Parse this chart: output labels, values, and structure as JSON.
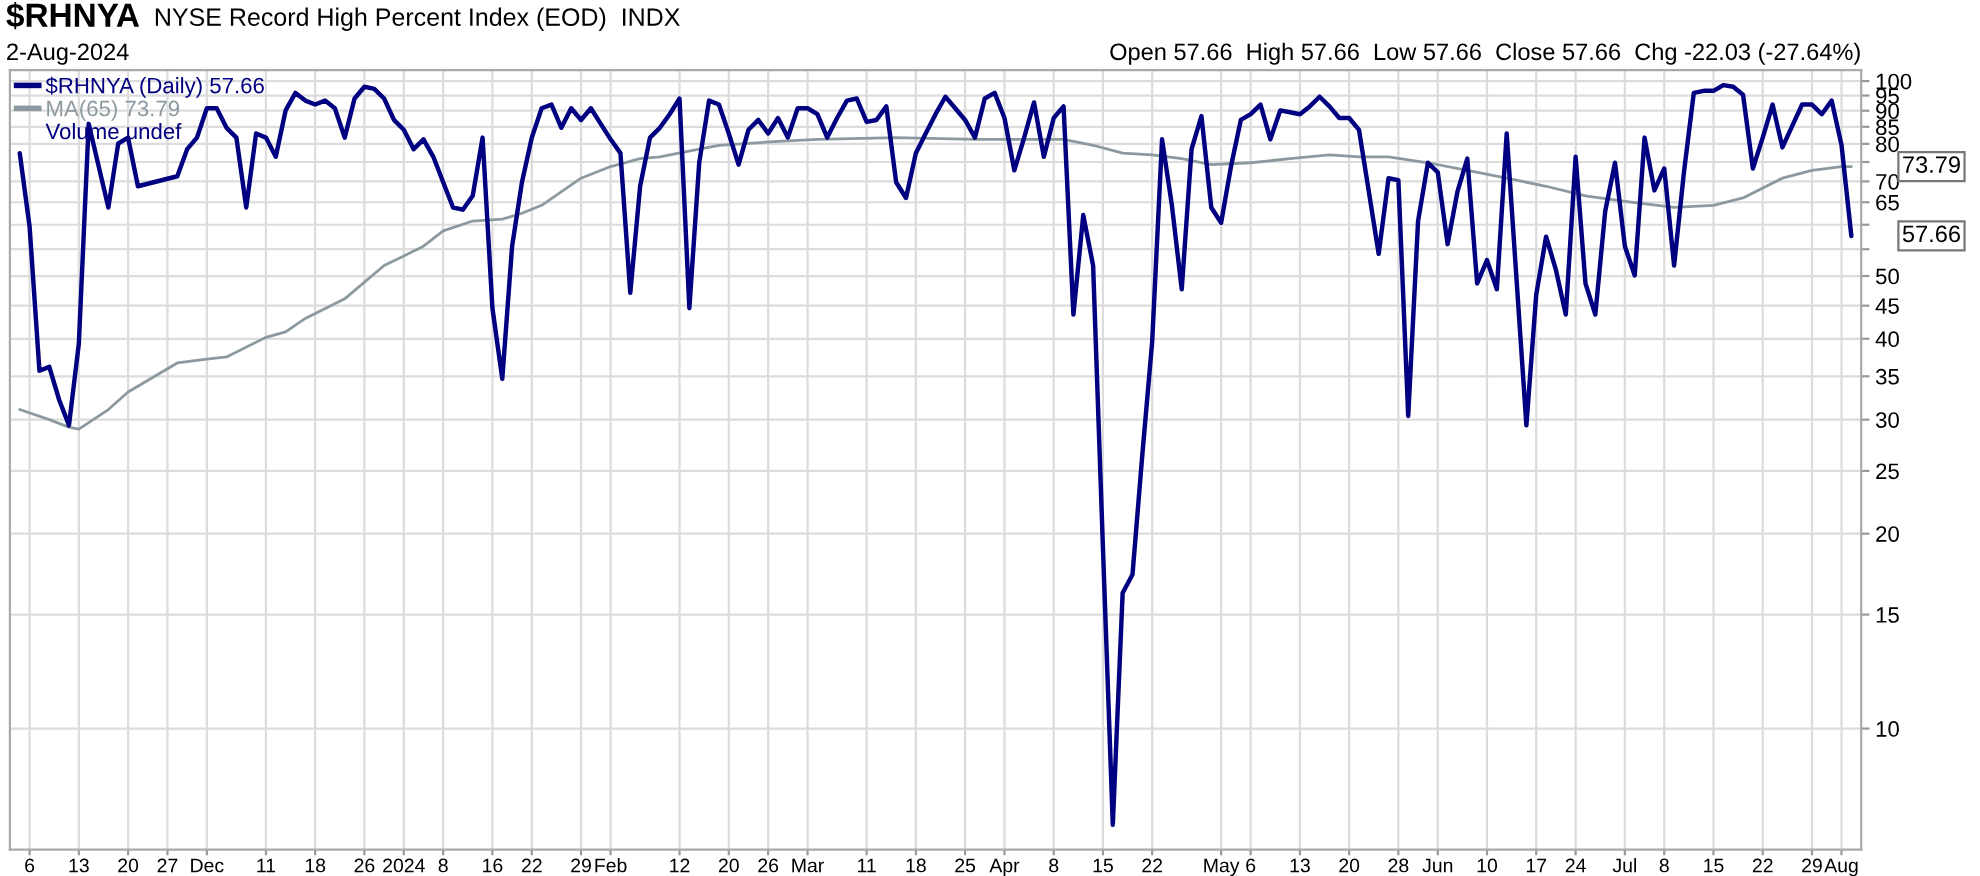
{
  "chart_data": {
    "type": "line",
    "title": "$RHNYA",
    "subtitle": "NYSE Record High Percent Index (EOD)  INDX",
    "annotations": [
      "2-Aug-2024",
      "Open 57.66  High 57.66  Low 57.66  Close 57.66  Chg -22.03 (-27.64%)",
      "Volume undef",
      "57.66",
      "73.79"
    ],
    "log": true,
    "grid": true,
    "legend": "top left",
    "ylim": [
      6.5,
      104
    ],
    "yticks": [
      10,
      15,
      20,
      25,
      30,
      35,
      40,
      45,
      50,
      {
        "value": 55,
        "label": null
      },
      {
        "value": 60,
        "label": null
      },
      65,
      70,
      {
        "value": 75,
        "label": null
      },
      80,
      85,
      90,
      95,
      100
    ],
    "categories": [
      null,
      "6",
      null,
      null,
      null,
      null,
      "13",
      null,
      null,
      null,
      null,
      "20",
      null,
      null,
      null,
      "27",
      null,
      null,
      null,
      "Dec",
      null,
      null,
      null,
      null,
      null,
      "11",
      null,
      null,
      null,
      null,
      "18",
      null,
      null,
      null,
      null,
      "26",
      null,
      null,
      null,
      "2024",
      null,
      null,
      null,
      "8",
      null,
      null,
      null,
      null,
      "16",
      null,
      null,
      null,
      "22",
      null,
      null,
      null,
      null,
      "29",
      null,
      null,
      "Feb",
      null,
      null,
      null,
      null,
      null,
      null,
      "12",
      null,
      null,
      null,
      null,
      "20",
      null,
      null,
      null,
      "26",
      null,
      null,
      null,
      "Mar",
      null,
      null,
      null,
      null,
      null,
      "11",
      null,
      null,
      null,
      null,
      "18",
      null,
      null,
      null,
      null,
      "25",
      null,
      null,
      null,
      "Apr",
      null,
      null,
      null,
      null,
      "8",
      null,
      null,
      null,
      null,
      "15",
      null,
      null,
      null,
      null,
      "22",
      null,
      null,
      null,
      null,
      null,
      null,
      "May",
      null,
      null,
      "6",
      null,
      null,
      null,
      null,
      "13",
      null,
      null,
      null,
      null,
      "20",
      null,
      null,
      null,
      null,
      "28",
      null,
      null,
      null,
      "Jun",
      null,
      null,
      null,
      null,
      "10",
      null,
      null,
      null,
      null,
      "17",
      null,
      null,
      null,
      "24",
      null,
      null,
      null,
      null,
      "Jul",
      null,
      null,
      null,
      "8",
      null,
      null,
      null,
      null,
      "15",
      null,
      null,
      null,
      null,
      "22",
      null,
      null,
      null,
      null,
      "29",
      null,
      null,
      "Aug",
      null
    ],
    "series": [
      {
        "name": "$RHNYA (Daily) 57.66",
        "color": "#000080",
        "values": [
          77.4,
          59.6,
          35.7,
          36.2,
          32.2,
          29.4,
          39.3,
          85.9,
          null,
          63.8,
          80.1,
          81.8,
          68.8,
          null,
          null,
          null,
          71.3,
          78.5,
          81.8,
          90.8,
          90.8,
          84.7,
          81.8,
          63.8,
          83,
          81.8,
          76.4,
          90.1,
          95.9,
          93.3,
          92,
          93.3,
          90.8,
          81.8,
          94,
          98,
          97.3,
          94,
          87.1,
          84.1,
          78.5,
          81.3,
          76.4,
          69.8,
          63.8,
          63.3,
          66.5,
          81.8,
          44.6,
          34.7,
          55.6,
          69.8,
          81.8,
          90.8,
          92,
          84.7,
          90.8,
          87.1,
          90.8,
          85.9,
          81.3,
          77.4,
          47.1,
          68.8,
          81.8,
          84.7,
          88.9,
          94,
          44.6,
          74.8,
          93.3,
          92,
          83,
          74.3,
          84.1,
          87.1,
          83,
          87.7,
          81.8,
          90.8,
          90.8,
          88.9,
          81.8,
          87.7,
          93.3,
          94,
          86.5,
          87.1,
          91.4,
          69.8,
          66,
          77.4,
          83,
          88.9,
          94.6,
          90.8,
          87.1,
          81.8,
          94,
          95.9,
          87.7,
          72.8,
          81.8,
          92.7,
          76.4,
          87.7,
          91.4,
          43.6,
          62.1,
          51.9,
          19,
          7.1,
          16.2,
          17.3,
          26.5,
          39.6,
          81.3,
          64.3,
          47.7,
          78.5,
          88.3,
          63.8,
          60.4,
          73.8,
          87.1,
          88.9,
          92,
          81.3,
          90.1,
          89.5,
          88.9,
          91.4,
          94.6,
          91.4,
          87.7,
          87.7,
          84.1,
          67.5,
          54.1,
          70.8,
          70.3,
          30.4,
          60.8,
          74.8,
          72.3,
          56,
          67.5,
          75.9,
          48.7,
          52.9,
          47.7,
          83,
          49.4,
          29.4,
          46.8,
          57.5,
          51.1,
          43.6,
          76.4,
          48.7,
          43.6,
          62.9,
          74.8,
          55.6,
          50.1,
          81.8,
          67.8,
          73.3,
          51.9,
          72.3,
          95.9,
          96.6,
          96.6,
          98.6,
          98,
          95.3,
          73.3,
          81.8,
          92,
          79,
          85.3,
          92,
          92,
          88.9,
          93.3,
          79.7,
          57.66
        ]
      },
      {
        "name": "MA(65) 73.79",
        "color": "#8c9aa0",
        "values": [
          31.1,
          null,
          null,
          30,
          null,
          29.2,
          29,
          null,
          null,
          31.1,
          null,
          33.1,
          null,
          null,
          null,
          null,
          36.7,
          null,
          null,
          37.2,
          null,
          37.5,
          null,
          null,
          null,
          40.2,
          null,
          41,
          null,
          43,
          null,
          null,
          null,
          46.1,
          null,
          null,
          null,
          51.9,
          null,
          53.7,
          null,
          55.6,
          null,
          58.7,
          null,
          null,
          60.8,
          null,
          null,
          61.2,
          null,
          62.5,
          null,
          64.3,
          null,
          null,
          null,
          70.8,
          null,
          null,
          73.8,
          null,
          null,
          75.9,
          null,
          76.4,
          null,
          null,
          null,
          78.5,
          null,
          79.6,
          null,
          null,
          null,
          null,
          null,
          80.7,
          null,
          null,
          null,
          81.3,
          null,
          null,
          null,
          null,
          null,
          null,
          null,
          81.8,
          null,
          null,
          null,
          null,
          null,
          null,
          null,
          81.3,
          null,
          null,
          null,
          null,
          null,
          null,
          null,
          null,
          81.3,
          null,
          null,
          79.6,
          null,
          null,
          77.4,
          null,
          null,
          76.9,
          null,
          null,
          75.9,
          null,
          null,
          74.3,
          null,
          null,
          null,
          74.8,
          null,
          null,
          null,
          75.9,
          null,
          null,
          null,
          76.9,
          null,
          null,
          76.4,
          null,
          null,
          76.4,
          null,
          null,
          null,
          74.8,
          null,
          null,
          null,
          72.8,
          null,
          null,
          null,
          70.8,
          null,
          null,
          null,
          68.8,
          null,
          null,
          null,
          66.5,
          null,
          null,
          null,
          65.2,
          null,
          null,
          null,
          null,
          63.8,
          null,
          null,
          null,
          64.3,
          null,
          null,
          66,
          null,
          null,
          null,
          70.8,
          null,
          null,
          72.8,
          null,
          null,
          73.8,
          73.79
        ]
      }
    ]
  }
}
